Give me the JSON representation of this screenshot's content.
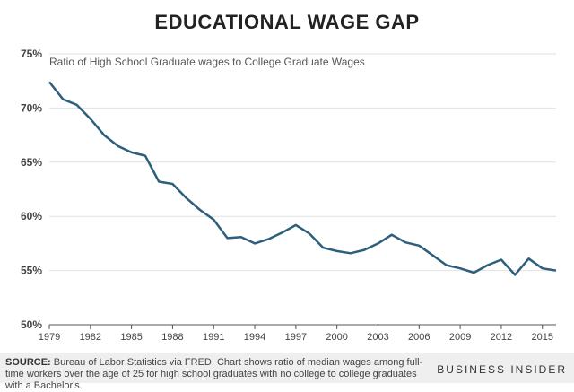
{
  "title": "EDUCATIONAL WAGE GAP",
  "subtitle": "Ratio of High School Graduate wages to College Graduate Wages",
  "source_label": "SOURCE:",
  "source_text": "Bureau of Labor Statistics via FRED. Chart shows ratio of median wages among full-time workers over the age of 25 for high school graduates with no college to college graduates with a Bachelor's.",
  "brand": "BUSINESS INSIDER",
  "colors": {
    "line": "#2d5f7c",
    "grid": "#e2e2e2",
    "axis": "#555555"
  },
  "chart_data": {
    "type": "line",
    "title": "EDUCATIONAL WAGE GAP",
    "ylim": [
      50,
      75
    ],
    "yticks": [
      50,
      55,
      60,
      65,
      70,
      75
    ],
    "ytick_labels": [
      "50%",
      "55%",
      "60%",
      "65%",
      "70%",
      "75%"
    ],
    "xlim": [
      1979,
      2016
    ],
    "xticks": [
      1979,
      1982,
      1985,
      1988,
      1991,
      1994,
      1997,
      2000,
      2003,
      2006,
      2009,
      2012,
      2015
    ],
    "xtick_labels": [
      "1979",
      "1982",
      "1985",
      "1988",
      "1991",
      "1994",
      "1997",
      "2000",
      "2003",
      "2006",
      "2009",
      "2012",
      "2015"
    ],
    "grid": true,
    "series": [
      {
        "x": [
          1979,
          1980,
          1981,
          1982,
          1983,
          1984,
          1985,
          1986,
          1987,
          1988,
          1989,
          1990,
          1991,
          1992,
          1993,
          1994,
          1995,
          1996,
          1997,
          1998,
          1999,
          2000,
          2001,
          2002,
          2003,
          2004,
          2005,
          2006,
          2007,
          2008,
          2009,
          2010,
          2011,
          2012,
          2013,
          2014,
          2015,
          2016
        ],
        "y": [
          72.4,
          70.8,
          70.3,
          69.0,
          67.5,
          66.5,
          65.9,
          65.6,
          63.2,
          63.0,
          61.7,
          60.6,
          59.7,
          58.0,
          58.1,
          57.5,
          57.9,
          58.5,
          59.2,
          58.4,
          57.1,
          56.8,
          56.6,
          56.9,
          57.5,
          58.3,
          57.6,
          57.3,
          56.4,
          55.5,
          55.2,
          54.8,
          55.5,
          56.0,
          54.6,
          56.1,
          55.2,
          55.0
        ]
      }
    ]
  }
}
